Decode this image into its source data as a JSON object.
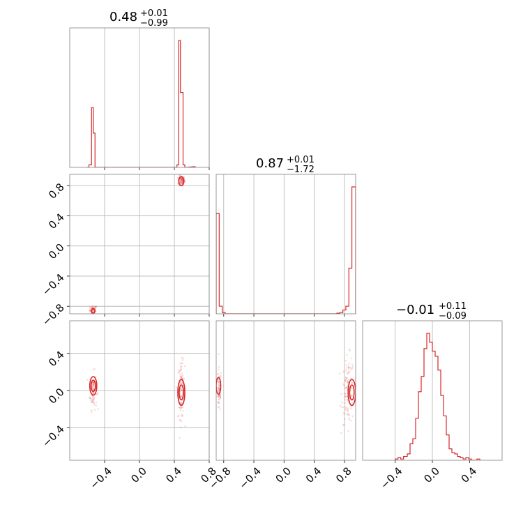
{
  "chart_data": {
    "type": "corner",
    "color": "#d62728",
    "grid": true,
    "panels": [
      {
        "id": "hist-p0",
        "kind": "histogram",
        "title": {
          "value": "0.48",
          "plus": "+0.01",
          "minus": "−0.99"
        },
        "x_range": [
          -0.8,
          0.8
        ],
        "bins": [
          [
            -0.6,
            -0.58,
            0.0
          ],
          [
            -0.58,
            -0.55,
            0.02
          ],
          [
            -0.55,
            -0.53,
            0.47
          ],
          [
            -0.53,
            -0.51,
            0.27
          ],
          [
            -0.51,
            -0.49,
            0.0
          ],
          [
            0.41,
            0.43,
            0.0
          ],
          [
            0.43,
            0.45,
            0.02
          ],
          [
            0.45,
            0.47,
            1.0
          ],
          [
            0.47,
            0.5,
            0.59
          ],
          [
            0.5,
            0.52,
            0.02
          ],
          [
            0.52,
            0.54,
            0.0
          ],
          [
            0.62,
            0.64,
            0.005
          ]
        ],
        "x_ticks": [
          -0.4,
          0.0,
          0.4,
          0.8
        ]
      },
      {
        "id": "scatter-p1-p0",
        "kind": "scatter2d",
        "x_range": [
          -0.8,
          0.8
        ],
        "y_range": [
          -0.9,
          0.95
        ],
        "clusters": [
          {
            "x": -0.53,
            "y": -0.85,
            "sx": 0.02,
            "sy": 0.03,
            "n": 60
          },
          {
            "x": 0.48,
            "y": 0.87,
            "sx": 0.02,
            "sy": 0.03,
            "n": 80
          }
        ],
        "contours": [
          {
            "cx": 0.48,
            "cy": 0.86,
            "rx": 0.03,
            "ry": 0.06
          },
          {
            "cx": -0.53,
            "cy": -0.86,
            "rx": 0.02,
            "ry": 0.03
          }
        ],
        "x_ticks": [
          -0.4,
          0.0,
          0.4,
          0.8
        ],
        "y_ticks": [
          {
            "value": -0.8,
            "label": "−0.8"
          },
          {
            "value": -0.4,
            "label": "−0.4"
          },
          {
            "value": 0.0,
            "label": "0.0"
          },
          {
            "value": 0.4,
            "label": "0.4"
          },
          {
            "value": 0.8,
            "label": "0.8"
          }
        ]
      },
      {
        "id": "hist-p1",
        "kind": "histogram",
        "title": {
          "value": "0.87",
          "plus": "+0.01",
          "minus": "−1.72"
        },
        "x_range": [
          -0.9,
          0.95
        ],
        "bins": [
          [
            -0.9,
            -0.86,
            0.79
          ],
          [
            -0.86,
            -0.82,
            0.06
          ],
          [
            -0.82,
            -0.78,
            0.01
          ],
          [
            -0.78,
            0.7,
            0.0
          ],
          [
            0.7,
            0.74,
            0.005
          ],
          [
            0.74,
            0.78,
            0.01
          ],
          [
            0.78,
            0.82,
            0.03
          ],
          [
            0.82,
            0.86,
            0.06
          ],
          [
            0.86,
            0.9,
            0.36
          ],
          [
            0.9,
            0.95,
            1.0
          ]
        ],
        "x_ticks": [
          -0.8,
          -0.4,
          0.0,
          0.4,
          0.8
        ]
      },
      {
        "id": "scatter-p2-p0",
        "kind": "scatter2d",
        "x_range": [
          -0.8,
          0.8
        ],
        "y_range": [
          -0.75,
          0.75
        ],
        "clusters": [
          {
            "x": -0.53,
            "y": 0.0,
            "sx": 0.02,
            "sy": 0.1,
            "n": 90
          },
          {
            "x": 0.48,
            "y": 0.0,
            "sx": 0.02,
            "sy": 0.15,
            "n": 110
          }
        ],
        "contours": [
          {
            "cx": -0.53,
            "cy": 0.05,
            "rx": 0.04,
            "ry": 0.1
          },
          {
            "cx": -0.53,
            "cy": 0.05,
            "rx": 0.025,
            "ry": 0.06
          },
          {
            "cx": 0.48,
            "cy": -0.02,
            "rx": 0.04,
            "ry": 0.14
          },
          {
            "cx": 0.48,
            "cy": -0.02,
            "rx": 0.025,
            "ry": 0.08
          }
        ],
        "x_ticks": [
          -0.4,
          0.0,
          0.4,
          0.8
        ],
        "y_ticks": [
          {
            "value": -0.4,
            "label": "−0.4"
          },
          {
            "value": 0.0,
            "label": "0.0"
          },
          {
            "value": 0.4,
            "label": "0.4"
          }
        ]
      },
      {
        "id": "scatter-p2-p1",
        "kind": "scatter2d",
        "x_range": [
          -0.9,
          0.95
        ],
        "y_range": [
          -0.75,
          0.75
        ],
        "clusters": [
          {
            "x": -0.86,
            "y": 0.0,
            "sx": 0.015,
            "sy": 0.12,
            "n": 70
          },
          {
            "x": 0.85,
            "y": 0.0,
            "sx": 0.04,
            "sy": 0.18,
            "n": 110
          }
        ],
        "contours": [
          {
            "cx": -0.87,
            "cy": 0.05,
            "rx": 0.03,
            "ry": 0.09
          },
          {
            "cx": 0.9,
            "cy": -0.02,
            "rx": 0.05,
            "ry": 0.14
          },
          {
            "cx": 0.9,
            "cy": -0.02,
            "rx": 0.03,
            "ry": 0.08
          }
        ],
        "x_ticks": [
          -0.8,
          -0.4,
          0.0,
          0.4,
          0.8
        ],
        "y_ticks": []
      },
      {
        "id": "hist-p2",
        "kind": "histogram",
        "title": {
          "value": "−0.01",
          "plus": "+0.11",
          "minus": "−0.09"
        },
        "x_range": [
          -0.75,
          0.75
        ],
        "bins": [
          [
            -0.4,
            -0.37,
            0.01
          ],
          [
            -0.37,
            -0.34,
            0.02
          ],
          [
            -0.34,
            -0.31,
            0.01
          ],
          [
            -0.31,
            -0.27,
            0.03
          ],
          [
            -0.27,
            -0.24,
            0.05
          ],
          [
            -0.24,
            -0.21,
            0.13
          ],
          [
            -0.21,
            -0.18,
            0.17
          ],
          [
            -0.18,
            -0.15,
            0.33
          ],
          [
            -0.15,
            -0.12,
            0.54
          ],
          [
            -0.12,
            -0.09,
            0.66
          ],
          [
            -0.09,
            -0.06,
            0.88
          ],
          [
            -0.06,
            -0.03,
            1.0
          ],
          [
            -0.03,
            0.0,
            0.93
          ],
          [
            0.0,
            0.03,
            0.86
          ],
          [
            0.03,
            0.06,
            0.82
          ],
          [
            0.06,
            0.09,
            0.71
          ],
          [
            0.09,
            0.12,
            0.51
          ],
          [
            0.12,
            0.15,
            0.35
          ],
          [
            0.15,
            0.18,
            0.2
          ],
          [
            0.18,
            0.21,
            0.09
          ],
          [
            0.21,
            0.24,
            0.06
          ],
          [
            0.24,
            0.27,
            0.05
          ],
          [
            0.27,
            0.3,
            0.03
          ],
          [
            0.3,
            0.33,
            0.02
          ],
          [
            0.33,
            0.36,
            0.01
          ],
          [
            0.36,
            0.39,
            0.02
          ],
          [
            0.39,
            0.42,
            0.01
          ],
          [
            0.42,
            0.48,
            0.0
          ],
          [
            0.48,
            0.51,
            0.01
          ]
        ],
        "x_ticks": [
          -0.4,
          0.0,
          0.4
        ]
      }
    ],
    "x_tick_labels": {
      "-0.8": "−0.8",
      "-0.4": "−0.4",
      "0": "0.0",
      "0.4": "0.4",
      "0.8": "0.8"
    }
  }
}
